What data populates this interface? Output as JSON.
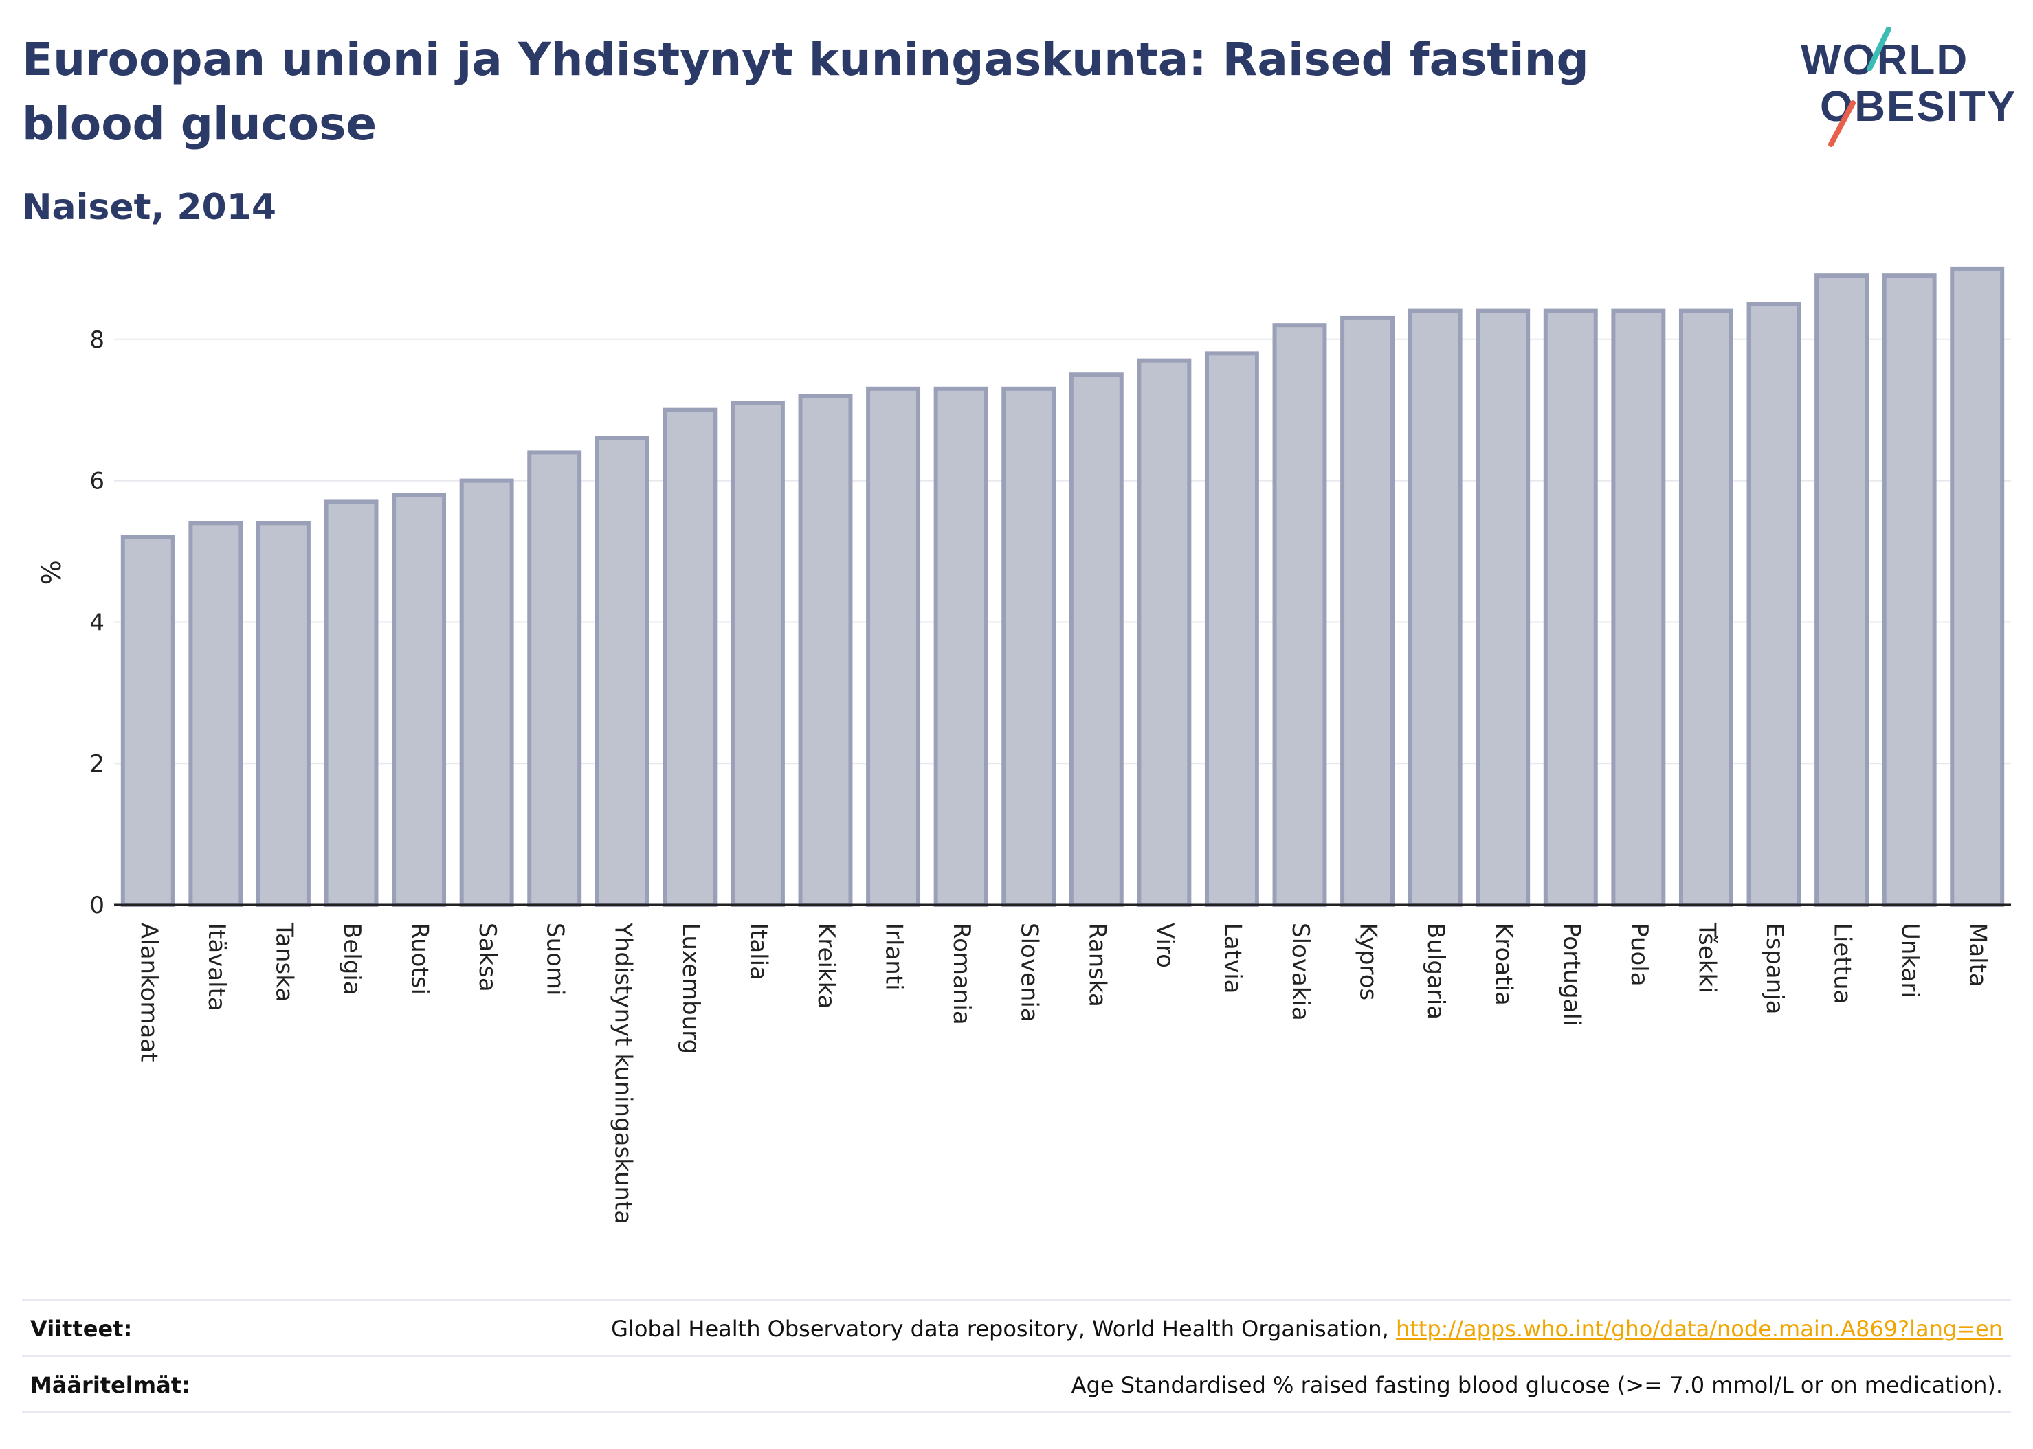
{
  "title": "Euroopan unioni ja Yhdistynyt kuningaskunta: Raised fasting blood glucose",
  "subtitle": "Naiset, 2014",
  "logo": {
    "line1": "WORLD",
    "line2": "OBESITY"
  },
  "colors": {
    "title": "#2b3a67",
    "bar_fill": "#bfc3d0",
    "bar_stroke": "#9aa0b8",
    "grid": "#e6e8ee",
    "link": "#f0a500",
    "logo_teal": "#3cbcb4",
    "logo_red": "#e8604c"
  },
  "footer": {
    "sources_label": "Viitteet:",
    "sources_text": "Global Health Observatory data repository, World Health Organisation, ",
    "sources_link": "http://apps.who.int/gho/data/node.main.A869?lang=en",
    "definitions_label": "Määritelmät:",
    "definitions_text": "Age Standardised % raised fasting blood glucose (>= 7.0 mmol/L or on medication)."
  },
  "chart_data": {
    "type": "bar",
    "ylabel": "%",
    "ylim": [
      0,
      9.3
    ],
    "yticks": [
      0,
      2,
      4,
      6,
      8
    ],
    "grid": true,
    "categories": [
      "Alankomaat",
      "Itävalta",
      "Tanska",
      "Belgia",
      "Ruotsi",
      "Saksa",
      "Suomi",
      "Yhdistynyt kuningaskunta",
      "Luxemburg",
      "Italia",
      "Kreikka",
      "Irlanti",
      "Romania",
      "Slovenia",
      "Ranska",
      "Viro",
      "Latvia",
      "Slovakia",
      "Kypros",
      "Bulgaria",
      "Kroatia",
      "Portugali",
      "Puola",
      "Tšekki",
      "Espanja",
      "Liettua",
      "Unkari",
      "Malta"
    ],
    "values": [
      5.2,
      5.4,
      5.4,
      5.7,
      5.8,
      6.0,
      6.4,
      6.6,
      7.0,
      7.1,
      7.2,
      7.3,
      7.3,
      7.3,
      7.5,
      7.7,
      7.8,
      8.2,
      8.3,
      8.4,
      8.4,
      8.4,
      8.4,
      8.4,
      8.5,
      8.9,
      8.9,
      9.0
    ]
  }
}
